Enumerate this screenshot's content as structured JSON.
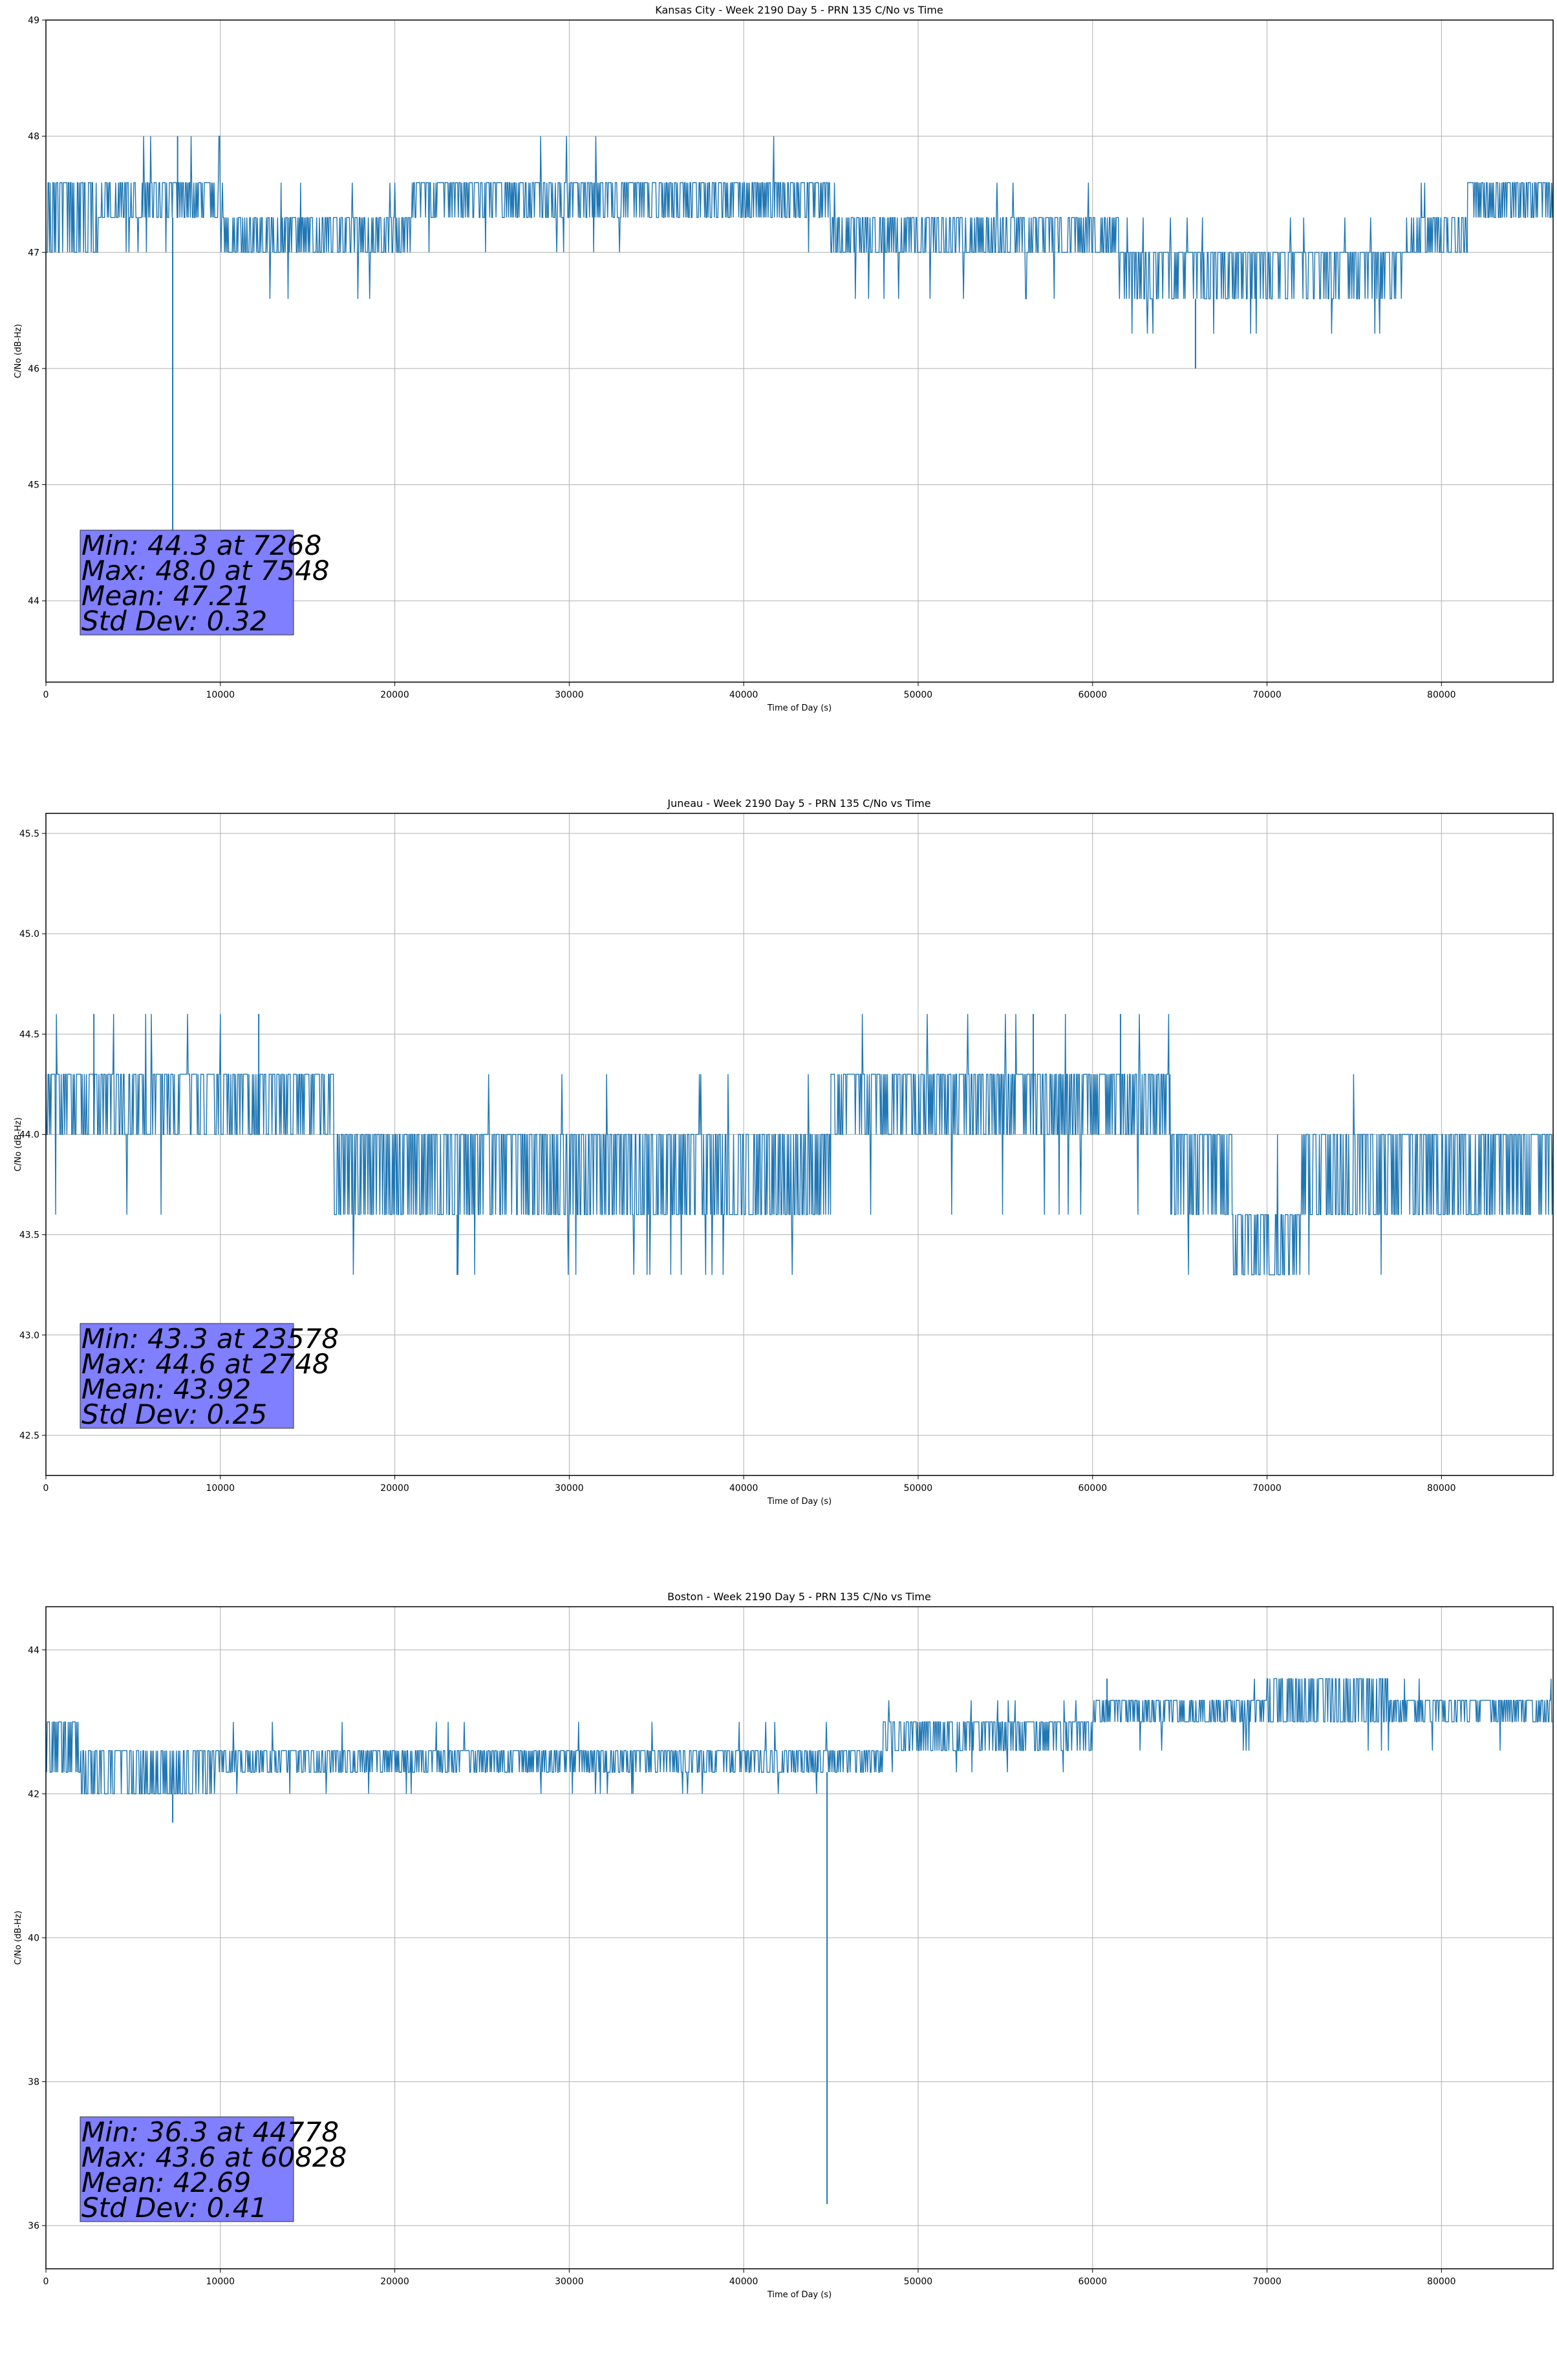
{
  "chart_data": [
    {
      "type": "line",
      "title": "Kansas City - Week 2190 Day 5 - PRN 135 C/No vs Time",
      "xlabel": "Time of Day (s)",
      "ylabel": "C/No (dB-Hz)",
      "xlim": [
        0,
        86400
      ],
      "ylim": [
        43.3,
        49.0
      ],
      "xticks": [
        0,
        10000,
        20000,
        30000,
        40000,
        50000,
        60000,
        70000,
        80000
      ],
      "yticks": [
        44,
        45,
        46,
        47,
        48,
        49
      ],
      "ytick_decimals": 0,
      "grid": true,
      "line_color": "#1f77b4",
      "segments": [
        {
          "x0": 0,
          "x1": 3000,
          "lo": 47.0,
          "hi": 47.6,
          "density": 0.6,
          "low_spike": 47.0,
          "high_spike": 47.6
        },
        {
          "x0": 3000,
          "x1": 10000,
          "lo": 47.3,
          "hi": 47.6,
          "density": 0.5,
          "low_spike": 47.0,
          "high_spike": 48.0
        },
        {
          "x0": 10000,
          "x1": 21000,
          "lo": 47.0,
          "hi": 47.3,
          "density": 0.5,
          "low_spike": 46.6,
          "high_spike": 47.6
        },
        {
          "x0": 21000,
          "x1": 45000,
          "lo": 47.3,
          "hi": 47.6,
          "density": 0.6,
          "low_spike": 47.0,
          "high_spike": 48.0
        },
        {
          "x0": 45000,
          "x1": 61500,
          "lo": 47.0,
          "hi": 47.3,
          "density": 0.5,
          "low_spike": 46.6,
          "high_spike": 47.6
        },
        {
          "x0": 61500,
          "x1": 78000,
          "lo": 46.6,
          "hi": 47.0,
          "density": 0.7,
          "low_spike": 46.3,
          "high_spike": 47.3
        },
        {
          "x0": 78000,
          "x1": 81500,
          "lo": 47.0,
          "hi": 47.3,
          "density": 0.5,
          "low_spike": 47.0,
          "high_spike": 47.6
        },
        {
          "x0": 81500,
          "x1": 86400,
          "lo": 47.3,
          "hi": 47.6,
          "density": 0.6,
          "low_spike": 47.3,
          "high_spike": 47.6
        }
      ],
      "spikes": [
        {
          "x": 7268,
          "y": 44.3
        },
        {
          "x": 7548,
          "y": 48.0
        },
        {
          "x": 65900,
          "y": 46.0
        }
      ],
      "stats": {
        "min": "Min: 44.3 at 7268",
        "max": "Max: 48.0 at 7548",
        "mean": "Mean: 47.21",
        "std": "Std Dev: 0.32"
      }
    },
    {
      "type": "line",
      "title": "Juneau - Week 2190 Day 5 - PRN 135 C/No vs Time",
      "xlabel": "Time of Day (s)",
      "ylabel": "C/No (dB-Hz)",
      "xlim": [
        0,
        86400
      ],
      "ylim": [
        42.3,
        45.6
      ],
      "xticks": [
        0,
        10000,
        20000,
        30000,
        40000,
        50000,
        60000,
        70000,
        80000
      ],
      "yticks": [
        42.5,
        43.0,
        43.5,
        44.0,
        44.5,
        45.0,
        45.5
      ],
      "ytick_decimals": 1,
      "grid": true,
      "line_color": "#1f77b4",
      "segments": [
        {
          "x0": 0,
          "x1": 16500,
          "lo": 44.0,
          "hi": 44.3,
          "density": 0.6,
          "low_spike": 43.6,
          "high_spike": 44.6
        },
        {
          "x0": 16500,
          "x1": 38500,
          "lo": 43.6,
          "hi": 44.0,
          "density": 0.6,
          "low_spike": 43.3,
          "high_spike": 44.3
        },
        {
          "x0": 38500,
          "x1": 45000,
          "lo": 43.6,
          "hi": 44.0,
          "density": 0.5,
          "low_spike": 43.3,
          "high_spike": 44.3
        },
        {
          "x0": 45000,
          "x1": 64500,
          "lo": 44.0,
          "hi": 44.3,
          "density": 0.6,
          "low_spike": 43.6,
          "high_spike": 44.6
        },
        {
          "x0": 64500,
          "x1": 68000,
          "lo": 43.6,
          "hi": 44.0,
          "density": 0.6,
          "low_spike": 43.3,
          "high_spike": 44.0
        },
        {
          "x0": 68000,
          "x1": 72000,
          "lo": 43.3,
          "hi": 43.6,
          "density": 0.6,
          "low_spike": 43.3,
          "high_spike": 44.0
        },
        {
          "x0": 72000,
          "x1": 75500,
          "lo": 43.6,
          "hi": 44.0,
          "density": 0.5,
          "low_spike": 43.3,
          "high_spike": 44.3
        },
        {
          "x0": 75500,
          "x1": 86400,
          "lo": 43.6,
          "hi": 44.0,
          "density": 0.6,
          "low_spike": 43.3,
          "high_spike": 44.0
        }
      ],
      "spikes": [
        {
          "x": 23578,
          "y": 43.3
        },
        {
          "x": 2748,
          "y": 44.6
        },
        {
          "x": 12200,
          "y": 44.6
        },
        {
          "x": 56600,
          "y": 44.6
        },
        {
          "x": 61600,
          "y": 44.6
        }
      ],
      "stats": {
        "min": "Min: 43.3 at 23578",
        "max": "Max: 44.6 at 2748",
        "mean": "Mean: 43.92",
        "std": "Std Dev: 0.25"
      }
    },
    {
      "type": "line",
      "title": "Boston - Week 2190 Day 5 - PRN 135 C/No vs Time",
      "xlabel": "Time of Day (s)",
      "ylabel": "C/No (dB-Hz)",
      "xlim": [
        0,
        86400
      ],
      "ylim": [
        35.4,
        44.6
      ],
      "xticks": [
        0,
        10000,
        20000,
        30000,
        40000,
        50000,
        60000,
        70000,
        80000
      ],
      "yticks": [
        36,
        38,
        40,
        42,
        44
      ],
      "ytick_decimals": 0,
      "grid": true,
      "line_color": "#1f77b4",
      "segments": [
        {
          "x0": 0,
          "x1": 2000,
          "lo": 42.3,
          "hi": 43.0,
          "density": 0.6,
          "low_spike": 42.3,
          "high_spike": 43.0
        },
        {
          "x0": 2000,
          "x1": 9500,
          "lo": 42.0,
          "hi": 42.6,
          "density": 0.5,
          "low_spike": 42.0,
          "high_spike": 42.6
        },
        {
          "x0": 9500,
          "x1": 48000,
          "lo": 42.3,
          "hi": 42.6,
          "density": 0.6,
          "low_spike": 42.0,
          "high_spike": 43.0
        },
        {
          "x0": 48000,
          "x1": 60000,
          "lo": 42.6,
          "hi": 43.0,
          "density": 0.6,
          "low_spike": 42.3,
          "high_spike": 43.3
        },
        {
          "x0": 60000,
          "x1": 70000,
          "lo": 43.0,
          "hi": 43.3,
          "density": 0.6,
          "low_spike": 42.6,
          "high_spike": 43.6
        },
        {
          "x0": 70000,
          "x1": 77000,
          "lo": 43.0,
          "hi": 43.6,
          "density": 0.5,
          "low_spike": 42.6,
          "high_spike": 43.6
        },
        {
          "x0": 77000,
          "x1": 86400,
          "lo": 43.0,
          "hi": 43.3,
          "density": 0.6,
          "low_spike": 42.6,
          "high_spike": 43.6
        }
      ],
      "spikes": [
        {
          "x": 44778,
          "y": 36.3
        },
        {
          "x": 7268,
          "y": 41.6
        },
        {
          "x": 60828,
          "y": 43.6
        }
      ],
      "stats": {
        "min": "Min: 36.3 at 44778",
        "max": "Max: 43.6 at 60828",
        "mean": "Mean: 42.69",
        "std": "Std Dev: 0.41"
      }
    }
  ]
}
